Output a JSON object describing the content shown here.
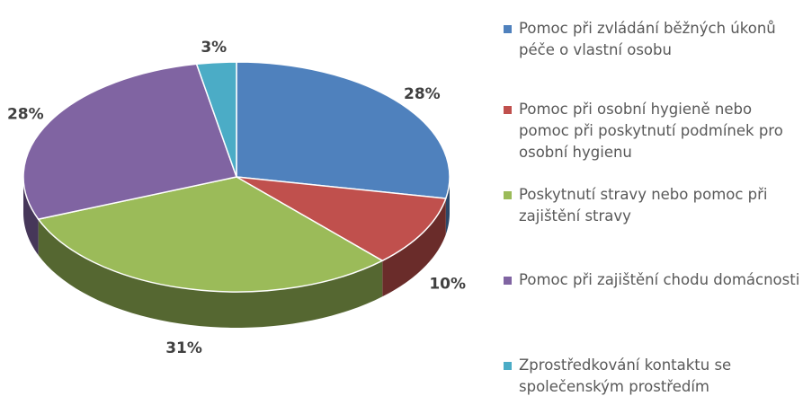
{
  "chart_data": {
    "type": "pie",
    "categories": [
      "Pomoc při zvládání běžných úkonů péče o vlastní osobu",
      "Pomoc při osobní hygieně nebo pomoc při poskytnutí podmínek pro osobní hygienu",
      "Poskytnutí stravy nebo pomoc při zajištění stravy",
      "Pomoc při zajištění chodu domácnosti",
      "Zprostředkování kontaktu se společenským prostředím"
    ],
    "values": [
      28,
      10,
      31,
      28,
      3
    ],
    "value_labels": [
      "28%",
      "10%",
      "31%",
      "28%",
      "3%"
    ],
    "colors": [
      "#4f81bd",
      "#c0504d",
      "#9bbb59",
      "#8064a2",
      "#4bacc6"
    ],
    "legend": "right"
  }
}
